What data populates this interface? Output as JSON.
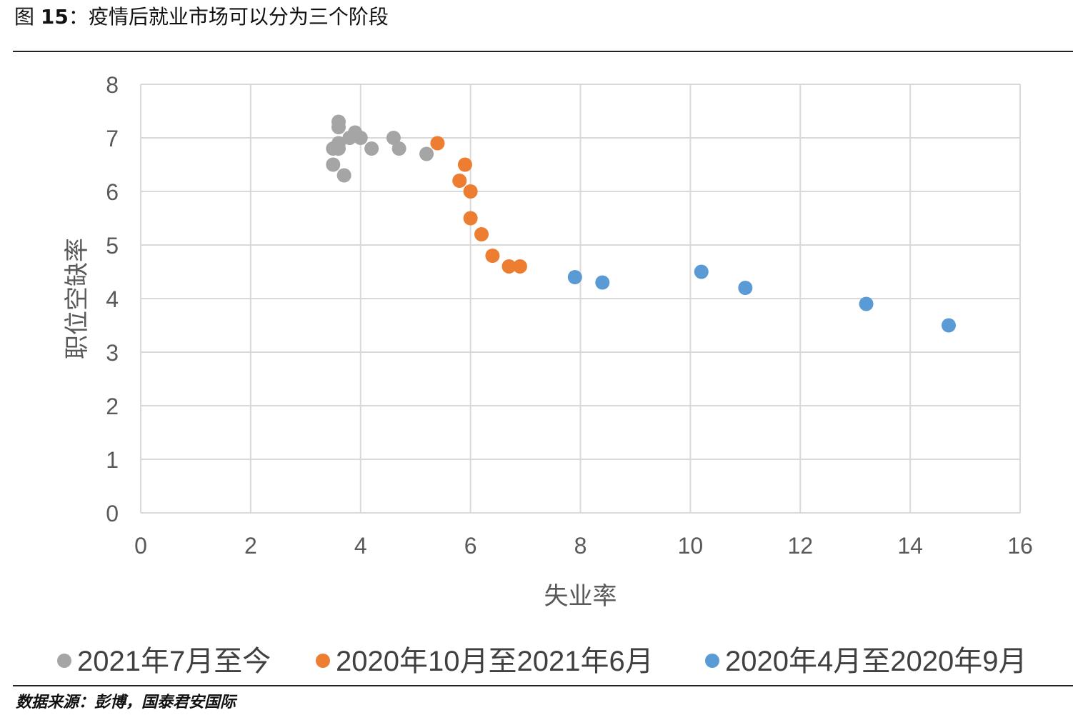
{
  "figure": {
    "label": "图",
    "number": "15",
    "caption": "：疫情后就业市场可以分为三个阶段"
  },
  "source": "数据来源：彭博，国泰君安国际",
  "chart_data": {
    "type": "scatter",
    "title": "",
    "xlabel": "失业率",
    "ylabel": "职位空缺率",
    "xlim": [
      0,
      16
    ],
    "ylim": [
      0,
      8
    ],
    "xticks": [
      0,
      2,
      4,
      6,
      8,
      10,
      12,
      14,
      16
    ],
    "yticks": [
      0,
      1,
      2,
      3,
      4,
      5,
      6,
      7,
      8
    ],
    "grid": true,
    "legend_position": "bottom",
    "series": [
      {
        "name": "2021年7月至今",
        "color": "#A5A5A5",
        "points": [
          [
            3.6,
            7.3
          ],
          [
            3.6,
            7.2
          ],
          [
            3.5,
            6.8
          ],
          [
            3.6,
            6.8
          ],
          [
            3.6,
            6.9
          ],
          [
            3.5,
            6.5
          ],
          [
            3.7,
            6.3
          ],
          [
            3.8,
            7.0
          ],
          [
            3.9,
            7.1
          ],
          [
            4.0,
            7.0
          ],
          [
            4.2,
            6.8
          ],
          [
            4.6,
            7.0
          ],
          [
            4.7,
            6.8
          ],
          [
            5.2,
            6.7
          ]
        ]
      },
      {
        "name": "2020年10月至2021年6月",
        "color": "#ED7D31",
        "points": [
          [
            5.4,
            6.9
          ],
          [
            5.9,
            6.5
          ],
          [
            5.8,
            6.2
          ],
          [
            6.0,
            6.0
          ],
          [
            6.0,
            5.5
          ],
          [
            6.2,
            5.2
          ],
          [
            6.4,
            4.8
          ],
          [
            6.7,
            4.6
          ],
          [
            6.9,
            4.6
          ]
        ]
      },
      {
        "name": "2020年4月至2020年9月",
        "color": "#5B9BD5",
        "points": [
          [
            7.9,
            4.4
          ],
          [
            8.4,
            4.3
          ],
          [
            10.2,
            4.5
          ],
          [
            11.0,
            4.2
          ],
          [
            13.2,
            3.9
          ],
          [
            14.7,
            3.5
          ]
        ]
      }
    ]
  }
}
